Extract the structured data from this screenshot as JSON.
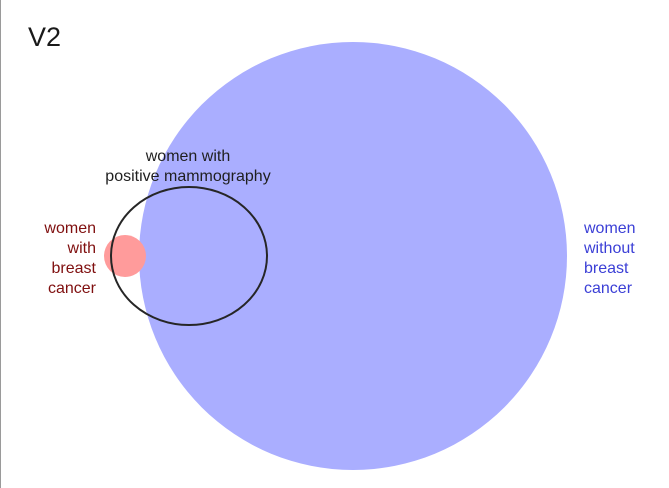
{
  "title": "V2",
  "colors": {
    "without_cancer_fill": "#aaaeff",
    "with_cancer_fill": "#ff9b9b",
    "mammography_stroke": "#262626",
    "cancer_text": "#7f0f0f",
    "no_cancer_text": "#3b3fd6"
  },
  "labels": {
    "positive_mammography": [
      "women with",
      "positive mammography"
    ],
    "with_breast_cancer": [
      "women",
      "with",
      "breast",
      "cancer"
    ],
    "without_breast_cancer": [
      "women",
      "without",
      "breast",
      "cancer"
    ]
  }
}
